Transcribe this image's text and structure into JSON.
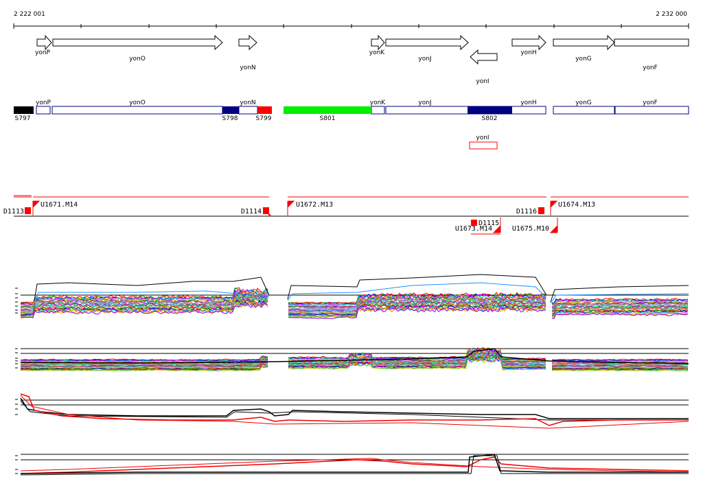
{
  "coords": {
    "start_label": "2 222 001",
    "end_label": "2 232 000"
  },
  "genes": [
    {
      "name": "yonP",
      "strand": "+"
    },
    {
      "name": "yonO",
      "strand": "+"
    },
    {
      "name": "yonN",
      "strand": "+"
    },
    {
      "name": "yonK",
      "strand": "+"
    },
    {
      "name": "yonJ",
      "strand": "+"
    },
    {
      "name": "yonI",
      "strand": "-"
    },
    {
      "name": "yonH",
      "strand": "+"
    },
    {
      "name": "yonG",
      "strand": "+"
    },
    {
      "name": "yonF",
      "strand": "+"
    }
  ],
  "segments": [
    {
      "name": "S797",
      "color": "#000000"
    },
    {
      "name": "S798",
      "color": "#000080"
    },
    {
      "name": "S799",
      "color": "#ff0000"
    },
    {
      "name": "S801",
      "color": "#00ee00"
    },
    {
      "name": "S802",
      "color": "#000080"
    }
  ],
  "upstream_elements": [
    "U1671.M14",
    "U1672.M13",
    "U1673.M14",
    "U1674.M13",
    "U1675.M10"
  ],
  "downstream_elements": [
    "D1113",
    "D1114",
    "D1115",
    "D1116"
  ],
  "colors": {
    "feature_outline": "#000080",
    "terminator": "#ff0000",
    "track_red": "#ee0000"
  }
}
